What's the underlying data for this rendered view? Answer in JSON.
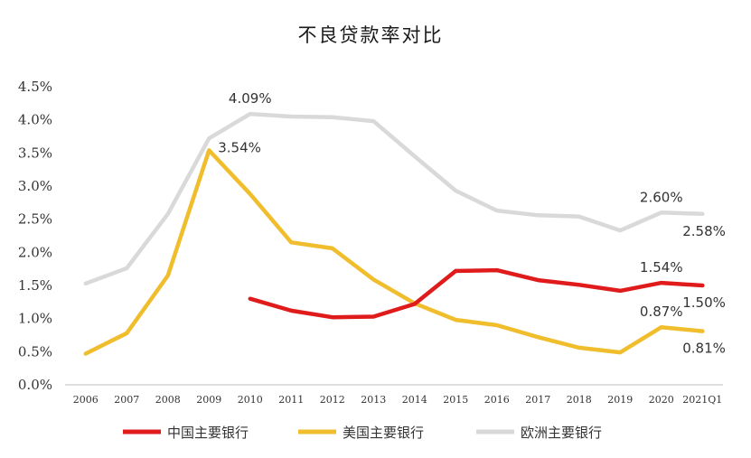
{
  "chart_data": {
    "type": "line",
    "title": "不良贷款率对比",
    "xlabel": "",
    "ylabel": "",
    "ylim": [
      0,
      4.5
    ],
    "yticks": [
      "0.0%",
      "0.5%",
      "1.0%",
      "1.5%",
      "2.0%",
      "2.5%",
      "3.0%",
      "3.5%",
      "4.0%",
      "4.5%"
    ],
    "categories": [
      "2006",
      "2007",
      "2008",
      "2009",
      "2010",
      "2011",
      "2012",
      "2013",
      "2014",
      "2015",
      "2016",
      "2017",
      "2018",
      "2019",
      "2020",
      "2021Q1"
    ],
    "grid": false,
    "legend_position": "bottom",
    "series": [
      {
        "name": "中国主要银行",
        "color": "#e01b1b",
        "values": [
          null,
          null,
          null,
          null,
          1.3,
          1.12,
          1.02,
          1.03,
          1.22,
          1.72,
          1.73,
          1.58,
          1.51,
          1.42,
          1.54,
          1.5
        ]
      },
      {
        "name": "美国主要银行",
        "color": "#f0bd2d",
        "values": [
          0.47,
          0.78,
          1.65,
          3.54,
          2.88,
          2.15,
          2.06,
          1.59,
          1.23,
          0.98,
          0.9,
          0.72,
          0.56,
          0.49,
          0.87,
          0.81
        ]
      },
      {
        "name": "欧洲主要银行",
        "color": "#d9d9d9",
        "values": [
          1.53,
          1.76,
          2.58,
          3.72,
          4.09,
          4.05,
          4.04,
          3.98,
          3.45,
          2.93,
          2.63,
          2.56,
          2.54,
          2.33,
          2.6,
          2.58
        ]
      }
    ],
    "annotations": [
      {
        "text": "4.09%",
        "series": 2,
        "index": 4,
        "pos": "above"
      },
      {
        "text": "3.54%",
        "series": 1,
        "index": 3,
        "pos": "right"
      },
      {
        "text": "2.60%",
        "series": 2,
        "index": 14,
        "pos": "above"
      },
      {
        "text": "2.58%",
        "series": 2,
        "index": 15,
        "pos": "below"
      },
      {
        "text": "1.54%",
        "series": 0,
        "index": 14,
        "pos": "above"
      },
      {
        "text": "1.50%",
        "series": 0,
        "index": 15,
        "pos": "below"
      },
      {
        "text": "0.87%",
        "series": 1,
        "index": 14,
        "pos": "above"
      },
      {
        "text": "0.81%",
        "series": 1,
        "index": 15,
        "pos": "below"
      }
    ]
  }
}
